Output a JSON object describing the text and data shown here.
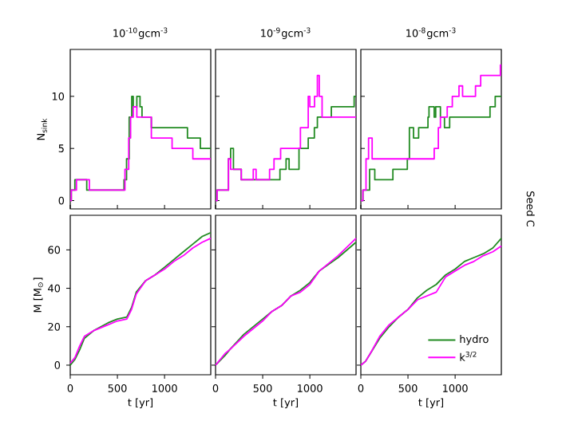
{
  "chart_data": [
    {
      "type": "step",
      "title": "10$^{-10}$gcm$^{-3}$",
      "ylabel": "N$_{sink}$",
      "xlim": [
        0,
        1490
      ],
      "ylim": [
        -0.8,
        14.5
      ],
      "xticks": [
        0,
        500,
        1000
      ],
      "yticks": [
        0,
        5,
        10
      ],
      "tick_labels": "y",
      "series": [
        {
          "color": "#228b22",
          "x": [
            0,
            11,
            49,
            175,
            570,
            597,
            625,
            652,
            668,
            706,
            740,
            761,
            860,
            1243,
            1380,
            1490
          ],
          "values": [
            0,
            1,
            2,
            1,
            2,
            4,
            8,
            10,
            9,
            10,
            9,
            8,
            7,
            6,
            5,
            5
          ]
        },
        {
          "color": "#ff00ff",
          "x": [
            0,
            11,
            66,
            203,
            580,
            620,
            640,
            668,
            706,
            761,
            860,
            1080,
            1300,
            1490
          ],
          "values": [
            0,
            1,
            2,
            1,
            3,
            6,
            8,
            9,
            8,
            8,
            6,
            5,
            4,
            4
          ]
        }
      ]
    },
    {
      "type": "step",
      "title": "10$^{-9}$gcm$^{-3}$",
      "xlim": [
        0,
        1490
      ],
      "ylim": [
        -0.8,
        14.5
      ],
      "xticks": [
        0,
        500,
        1000
      ],
      "yticks": [
        0,
        5,
        10
      ],
      "tick_labels": false,
      "series": [
        {
          "color": "#228b22",
          "x": [
            0,
            16,
            137,
            160,
            190,
            273,
            683,
            748,
            780,
            885,
            983,
            1048,
            1080,
            1228,
            1470,
            1490
          ],
          "values": [
            0,
            1,
            4,
            5,
            3,
            2,
            3,
            4,
            3,
            5,
            6,
            7,
            8,
            9,
            10,
            10
          ]
        },
        {
          "color": "#ff00ff",
          "x": [
            0,
            16,
            137,
            160,
            273,
            400,
            430,
            573,
            620,
            690,
            900,
            983,
            1000,
            1050,
            1080,
            1100,
            1130,
            1490
          ],
          "values": [
            0,
            1,
            4,
            3,
            2,
            3,
            2,
            3,
            4,
            5,
            7,
            10,
            9,
            10,
            12,
            10,
            8,
            8
          ]
        }
      ]
    },
    {
      "type": "step",
      "title": "10$^{-8}$gcm$^{-3}$",
      "xlim": [
        0,
        1490
      ],
      "ylim": [
        -0.8,
        14.5
      ],
      "xticks": [
        0,
        500,
        1000
      ],
      "yticks": [
        0,
        5,
        10
      ],
      "tick_labels": false,
      "annotations": [
        "Seed C"
      ],
      "series": [
        {
          "color": "#228b22",
          "x": [
            0,
            22,
            93,
            148,
            340,
            493,
            515,
            559,
            613,
            712,
            723,
            778,
            794,
            844,
            887,
            942,
            1370,
            1425,
            1490
          ],
          "values": [
            0,
            1,
            3,
            2,
            3,
            4,
            7,
            6,
            7,
            8,
            9,
            8,
            9,
            8,
            7,
            8,
            9,
            10,
            10
          ]
        },
        {
          "color": "#ff00ff",
          "x": [
            0,
            22,
            55,
            82,
            120,
            778,
            822,
            844,
            916,
            970,
            1041,
            1079,
            1216,
            1271,
            1480,
            1490
          ],
          "values": [
            0,
            1,
            4,
            6,
            4,
            5,
            7,
            8,
            9,
            10,
            11,
            10,
            11,
            12,
            13,
            13
          ]
        }
      ]
    },
    {
      "type": "line",
      "xlabel": "t [yr]",
      "ylabel": "M [M$_{⊙}$]",
      "xlim": [
        0,
        1490
      ],
      "ylim": [
        -5,
        78
      ],
      "xticks": [
        0,
        500,
        1000
      ],
      "yticks": [
        0,
        20,
        40,
        60
      ],
      "series": [
        {
          "color": "#228b22",
          "x": [
            0,
            50,
            100,
            150,
            250,
            400,
            500,
            600,
            650,
            700,
            800,
            900,
            1000,
            1100,
            1200,
            1300,
            1400,
            1490
          ],
          "values": [
            0,
            3,
            8,
            14,
            18,
            22,
            24,
            25,
            30,
            38,
            44,
            47,
            51,
            55,
            59,
            63,
            67,
            69
          ]
        },
        {
          "color": "#ff00ff",
          "x": [
            0,
            50,
            100,
            150,
            250,
            400,
            500,
            600,
            650,
            700,
            800,
            900,
            1000,
            1100,
            1200,
            1300,
            1400,
            1490
          ],
          "values": [
            1,
            4,
            10,
            15,
            18,
            21,
            23,
            24,
            29,
            37,
            44,
            47,
            50,
            54,
            57,
            61,
            64,
            66
          ]
        }
      ]
    },
    {
      "type": "line",
      "xlabel": "t [yr]",
      "xlim": [
        0,
        1490
      ],
      "ylim": [
        -5,
        78
      ],
      "xticks": [
        0,
        500,
        1000
      ],
      "yticks": [
        0,
        20,
        40,
        60
      ],
      "tick_labels": "x",
      "series": [
        {
          "color": "#228b22",
          "x": [
            0,
            100,
            150,
            300,
            500,
            600,
            700,
            800,
            900,
            1000,
            1100,
            1300,
            1490
          ],
          "values": [
            0,
            5,
            8,
            16,
            24,
            28,
            31,
            36,
            39,
            43,
            49,
            56,
            64
          ]
        },
        {
          "color": "#ff00ff",
          "x": [
            0,
            100,
            150,
            300,
            500,
            600,
            700,
            800,
            900,
            1000,
            1100,
            1300,
            1490
          ],
          "values": [
            0,
            6,
            8,
            15,
            23,
            28,
            31,
            36,
            38,
            42,
            49,
            57,
            66
          ]
        }
      ]
    },
    {
      "type": "line",
      "xlabel": "t [yr]",
      "xlim": [
        0,
        1490
      ],
      "ylim": [
        -5,
        78
      ],
      "xticks": [
        0,
        500,
        1000
      ],
      "yticks": [
        0,
        20,
        40,
        60
      ],
      "tick_labels": "x",
      "legend": "bottom right",
      "series": [
        {
          "name": "hydro",
          "color": "#228b22",
          "x": [
            0,
            50,
            100,
            200,
            300,
            400,
            500,
            600,
            700,
            800,
            900,
            1000,
            1100,
            1200,
            1300,
            1400,
            1490
          ],
          "values": [
            0,
            2,
            6,
            14,
            20,
            25,
            29,
            35,
            39,
            42,
            47,
            50,
            54,
            56,
            58,
            61,
            66
          ]
        },
        {
          "name": "k$^{3/2}$",
          "color": "#ff00ff",
          "x": [
            0,
            50,
            100,
            200,
            300,
            400,
            500,
            600,
            700,
            800,
            900,
            1000,
            1100,
            1200,
            1300,
            1400,
            1490
          ],
          "values": [
            0,
            2,
            6,
            15,
            21,
            25,
            29,
            34,
            36,
            38,
            46,
            49,
            52,
            54,
            57,
            59,
            62
          ]
        }
      ]
    }
  ]
}
